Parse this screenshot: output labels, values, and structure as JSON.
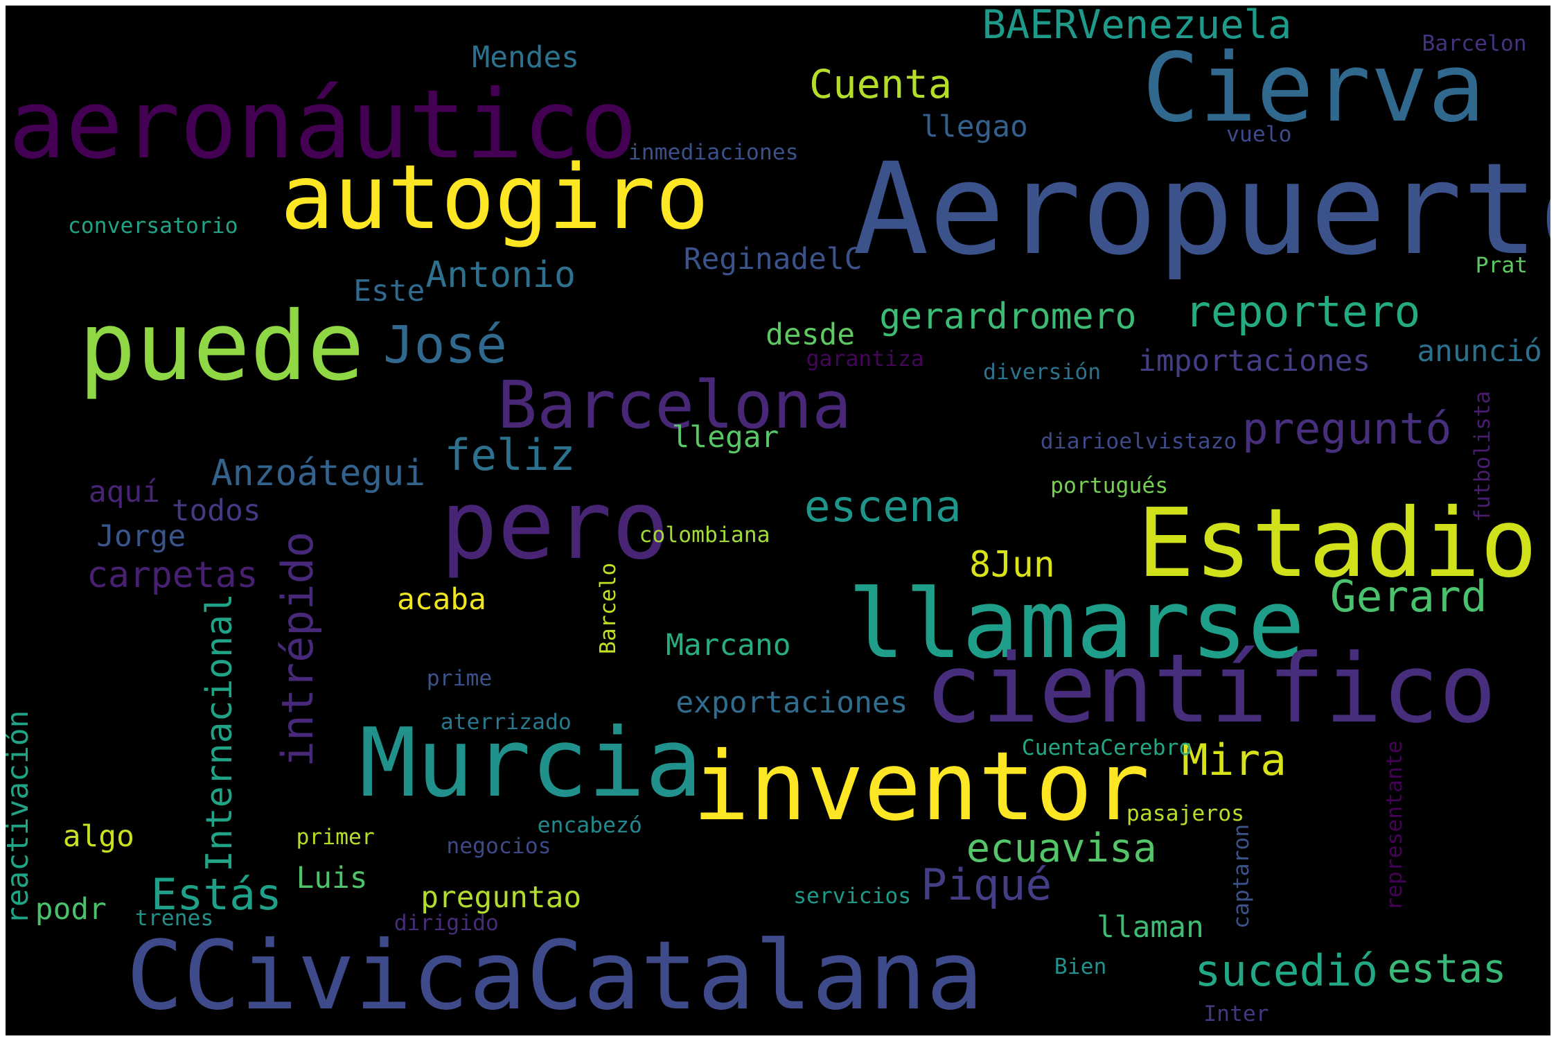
{
  "words": [
    {
      "id": "aeropuerto",
      "text": "Aeropuerto",
      "color": "#3b528b"
    },
    {
      "id": "aeronautico",
      "text": "aeronáutico",
      "color": "#440154"
    },
    {
      "id": "cierva",
      "text": "Cierva",
      "color": "#31688e"
    },
    {
      "id": "autogiro",
      "text": "autogiro",
      "color": "#fde725"
    },
    {
      "id": "puede",
      "text": "puede",
      "color": "#8fd744"
    },
    {
      "id": "ccivicacatalana",
      "text": "CCivicaCatalana",
      "color": "#3e4a89"
    },
    {
      "id": "estadio",
      "text": "Estadio",
      "color": "#d0e11c"
    },
    {
      "id": "llamarse",
      "text": "llamarse",
      "color": "#1f9e89"
    },
    {
      "id": "cientifico",
      "text": "científico",
      "color": "#472d7b"
    },
    {
      "id": "inventor",
      "text": "inventor",
      "color": "#fde725"
    },
    {
      "id": "murcia",
      "text": "Murcia",
      "color": "#21918c"
    },
    {
      "id": "pero",
      "text": "pero",
      "color": "#482475"
    },
    {
      "id": "barcelona",
      "text": "Barcelona",
      "color": "#482777"
    },
    {
      "id": "jose",
      "text": "José",
      "color": "#31688e"
    },
    {
      "id": "intrepido",
      "text": "intrépido",
      "color": "#482979"
    },
    {
      "id": "internacional",
      "text": "Internacional",
      "color": "#20a386"
    },
    {
      "id": "reportero",
      "text": "reportero",
      "color": "#25ab82"
    },
    {
      "id": "pregunto",
      "text": "preguntó",
      "color": "#472f7d"
    },
    {
      "id": "escena",
      "text": "escena",
      "color": "#1f968b"
    },
    {
      "id": "gerard",
      "text": "Gerard",
      "color": "#4ac16d"
    },
    {
      "id": "feliz",
      "text": "feliz",
      "color": "#2c728e"
    },
    {
      "id": "piqué",
      "text": "Piqué",
      "color": "#433e85"
    },
    {
      "id": "sucedio",
      "text": "sucedió",
      "color": "#22a884"
    },
    {
      "id": "ecuavisa",
      "text": "ecuavisa",
      "color": "#54c568"
    },
    {
      "id": "cuenta",
      "text": "Cuenta",
      "color": "#b5de2b"
    },
    {
      "id": "baervenezuela",
      "text": "BAERVenezuela",
      "color": "#1f9a8a"
    },
    {
      "id": "estas",
      "text": "Estás",
      "color": "#1fa088"
    },
    {
      "id": "estas2",
      "text": "estas",
      "color": "#38b977"
    },
    {
      "id": "mira",
      "text": "Mira",
      "color": "#d8e219"
    },
    {
      "id": "anzoategui",
      "text": "Anzoátegui",
      "color": "#33628d"
    },
    {
      "id": "antonio",
      "text": "Antonio",
      "color": "#2d718e"
    },
    {
      "id": "gerardromero",
      "text": "gerardromero",
      "color": "#3cbb75"
    },
    {
      "id": "8jun",
      "text": "8Jun",
      "color": "#dae319"
    },
    {
      "id": "carpetas",
      "text": "carpetas",
      "color": "#482071"
    },
    {
      "id": "mendes",
      "text": "Mendes",
      "color": "#2c728e"
    },
    {
      "id": "llegao",
      "text": "llegao",
      "color": "#34608d"
    },
    {
      "id": "reginadelc",
      "text": "ReginadelC",
      "color": "#3b528b"
    },
    {
      "id": "importaciones",
      "text": "importaciones",
      "color": "#433e85"
    },
    {
      "id": "anuncio",
      "text": "anunció",
      "color": "#2d708e"
    },
    {
      "id": "exportaciones",
      "text": "exportaciones",
      "color": "#2f6c8e"
    },
    {
      "id": "llaman",
      "text": "llaman",
      "color": "#3fbc73"
    },
    {
      "id": "marcano",
      "text": "Marcano",
      "color": "#27ad81"
    },
    {
      "id": "acaba",
      "text": "acaba",
      "color": "#f1e51d"
    },
    {
      "id": "llegar",
      "text": "llegar",
      "color": "#58c765"
    },
    {
      "id": "desde",
      "text": "desde",
      "color": "#5ec962"
    },
    {
      "id": "este",
      "text": "Este",
      "color": "#306a8e"
    },
    {
      "id": "aqui",
      "text": "aquí",
      "color": "#482475"
    },
    {
      "id": "todos",
      "text": "todos",
      "color": "#443983"
    },
    {
      "id": "jorge",
      "text": "Jorge",
      "color": "#3a548c"
    },
    {
      "id": "algo",
      "text": "algo",
      "color": "#c8e020"
    },
    {
      "id": "luis",
      "text": "Luis",
      "color": "#4ec36b"
    },
    {
      "id": "preguntao",
      "text": "preguntao",
      "color": "#b2dd2d"
    },
    {
      "id": "reactivacion",
      "text": "reactivación",
      "color": "#20a486"
    },
    {
      "id": "podr",
      "text": "podr",
      "color": "#4ac16d"
    },
    {
      "id": "trenes",
      "text": "trenes",
      "color": "#21918c"
    },
    {
      "id": "primer",
      "text": "primer",
      "color": "#b5de2b"
    },
    {
      "id": "negocios",
      "text": "negocios",
      "color": "#3e4989"
    },
    {
      "id": "dirigido",
      "text": "dirigido",
      "color": "#472c7a"
    },
    {
      "id": "servicios",
      "text": "servicios",
      "color": "#1f9a8a"
    },
    {
      "id": "encabezo",
      "text": "encabezó",
      "color": "#23898e"
    },
    {
      "id": "aterrizado",
      "text": "aterrizado",
      "color": "#2a788e"
    },
    {
      "id": "prime",
      "text": "prime",
      "color": "#3b528b"
    },
    {
      "id": "barcelo",
      "text": "Barcelo",
      "color": "#c2df23"
    },
    {
      "id": "colombiana",
      "text": "colombiana",
      "color": "#a2da37"
    },
    {
      "id": "portugues",
      "text": "portugués",
      "color": "#75d054"
    },
    {
      "id": "diarioelvistazo",
      "text": "diarioelvistazo",
      "color": "#3e4a89"
    },
    {
      "id": "diversion",
      "text": "diversión",
      "color": "#2c738e"
    },
    {
      "id": "garantiza",
      "text": "garantiza",
      "color": "#450559"
    },
    {
      "id": "inmediaciones",
      "text": "inmediaciones",
      "color": "#3b518b"
    },
    {
      "id": "conversatorio",
      "text": "conversatorio",
      "color": "#20a386"
    },
    {
      "id": "vuelo",
      "text": "vuelo",
      "color": "#3e4a89"
    },
    {
      "id": "barcelon",
      "text": "Barcelon",
      "color": "#46337f"
    },
    {
      "id": "prat",
      "text": "Prat",
      "color": "#5ec962"
    },
    {
      "id": "futbolista",
      "text": "futbolista",
      "color": "#481c6e"
    },
    {
      "id": "representante",
      "text": "representante",
      "color": "#440256"
    },
    {
      "id": "captaron",
      "text": "captaron",
      "color": "#3b528b"
    },
    {
      "id": "cuentacerebro",
      "text": "CuentaCerebro",
      "color": "#22a884"
    },
    {
      "id": "pasajeros",
      "text": "pasajeros",
      "color": "#b8de29"
    },
    {
      "id": "bien",
      "text": "Bien",
      "color": "#21918c"
    },
    {
      "id": "inter",
      "text": "Inter",
      "color": "#453781"
    }
  ]
}
